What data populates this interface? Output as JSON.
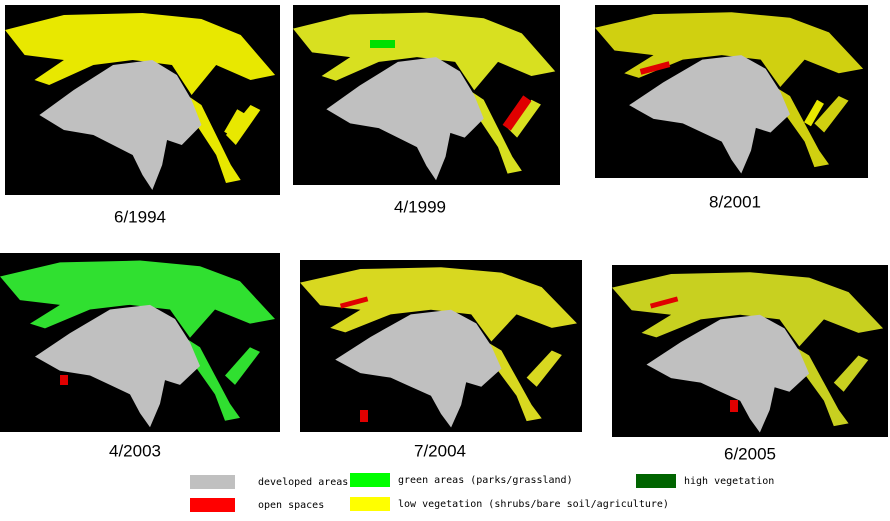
{
  "panels": [
    {
      "label": "6/1994"
    },
    {
      "label": "4/1999"
    },
    {
      "label": "8/2001"
    },
    {
      "label": "4/2003"
    },
    {
      "label": "7/2004"
    },
    {
      "label": "6/2005"
    }
  ],
  "legend": [
    {
      "label": "developed areas"
    },
    {
      "label": "open spaces"
    },
    {
      "label": "green areas (parks/grassland)"
    },
    {
      "label": "low vegetation (shrubs/bare soil/agriculture)"
    },
    {
      "label": "high vegetation"
    }
  ]
}
